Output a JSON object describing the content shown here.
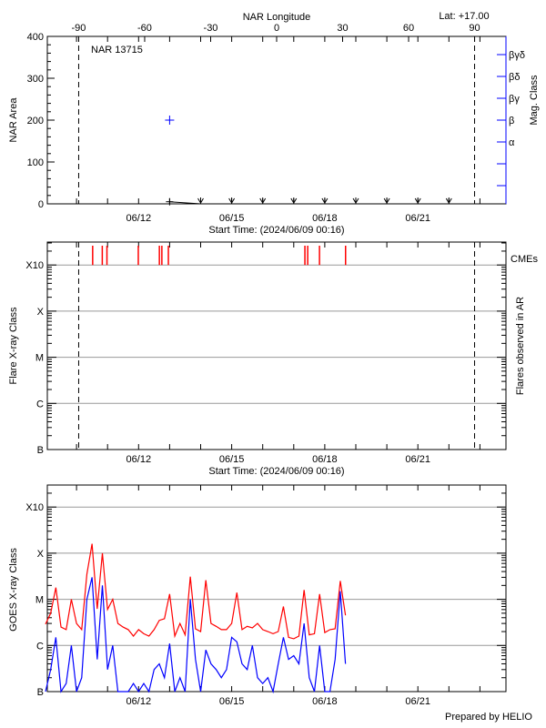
{
  "header": {
    "lat_label": "Lat: +17.00",
    "region_label": "NAR 13715"
  },
  "footer": {
    "credit": "Prepared by HELIO"
  },
  "colors": {
    "area": "#000000",
    "mag_class": "#0000ff",
    "cme": "#ff0000",
    "goes_long": "#ff0000",
    "goes_short": "#0000ff",
    "grid": "#999999"
  },
  "chart_data": [
    {
      "type": "scatter",
      "title": "NAR 13715",
      "top_axis_label": "NAR Longitude",
      "top_ticks": [
        -90,
        -60,
        -30,
        0,
        30,
        60,
        90
      ],
      "xlabel": "Start Time: (2024/06/09 00:16)",
      "x_tick_labels": [
        {
          "date": "2024-06-12 00:00",
          "label": "06/12"
        },
        {
          "date": "2024-06-15 00:00",
          "label": "06/15"
        },
        {
          "date": "2024-06-18 00:00",
          "label": "06/18"
        },
        {
          "date": "2024-06-21 00:00",
          "label": "06/21"
        }
      ],
      "xlim": [
        "2024-06-09 00:00",
        "2024-06-23 19:00"
      ],
      "ylabel": "NAR Area",
      "ylim": [
        0,
        400
      ],
      "yticks": [
        0,
        100,
        200,
        300,
        400
      ],
      "y2label": "Mag. Class",
      "y2_ticks": [
        "",
        "",
        "α",
        "β",
        "βγ",
        "βδ",
        "βγδ"
      ],
      "limb_markers_longitude": [
        -90,
        90
      ],
      "area_points": [
        {
          "date": "2024-06-13 00:00",
          "area": 5
        },
        {
          "date": "2024-06-14 00:00",
          "area": 0
        }
      ],
      "upper_limit_dates": [
        "2024-06-14 00:00",
        "2024-06-15 00:00",
        "2024-06-16 00:00",
        "2024-06-17 00:00",
        "2024-06-18 00:00",
        "2024-06-19 00:00",
        "2024-06-20 00:00",
        "2024-06-21 00:00",
        "2024-06-22 00:00"
      ],
      "mag_class_points": [
        {
          "date": "2024-06-13 00:00",
          "class": "β"
        }
      ]
    },
    {
      "type": "event",
      "xlabel": "Start Time: (2024/06/09 00:16)",
      "x_tick_labels": [
        "06/12",
        "06/15",
        "06/18",
        "06/21"
      ],
      "ylabel": "Flare X-ray Class",
      "y2label": "Flares observed in AR",
      "yticks": [
        "B",
        "C",
        "M",
        "X",
        "X10"
      ],
      "cme_label": "CMEs",
      "cme_times": [
        "2024-06-10 12:29",
        "2024-06-10 19:55",
        "2024-06-10 23:31",
        "2024-06-11 23:46",
        "2024-06-12 16:05",
        "2024-06-12 18:00",
        "2024-06-12 23:02",
        "2024-06-17 08:38",
        "2024-06-17 10:48",
        "2024-06-17 19:55",
        "2024-06-18 16:05"
      ],
      "flares": [],
      "grid": true
    },
    {
      "type": "line",
      "ylabel": "GOES X-ray Class",
      "x_tick_labels": [
        "06/12",
        "06/15",
        "06/18",
        "06/21"
      ],
      "yticks": [
        "B",
        "C",
        "M",
        "X",
        "X10"
      ],
      "grid": true,
      "times": [
        "2024-06-09 00:00",
        "2024-06-09 04:00",
        "2024-06-09 08:00",
        "2024-06-09 12:00",
        "2024-06-09 16:00",
        "2024-06-09 20:00",
        "2024-06-10 00:00",
        "2024-06-10 04:00",
        "2024-06-10 08:00",
        "2024-06-10 12:00",
        "2024-06-10 16:00",
        "2024-06-10 20:00",
        "2024-06-11 00:00",
        "2024-06-11 04:00",
        "2024-06-11 08:00",
        "2024-06-11 12:00",
        "2024-06-11 16:00",
        "2024-06-11 20:00",
        "2024-06-12 00:00",
        "2024-06-12 04:00",
        "2024-06-12 08:00",
        "2024-06-12 12:00",
        "2024-06-12 16:00",
        "2024-06-12 20:00",
        "2024-06-13 00:00",
        "2024-06-13 04:00",
        "2024-06-13 08:00",
        "2024-06-13 12:00",
        "2024-06-13 16:00",
        "2024-06-13 20:00",
        "2024-06-14 00:00",
        "2024-06-14 04:00",
        "2024-06-14 08:00",
        "2024-06-14 12:00",
        "2024-06-14 16:00",
        "2024-06-14 20:00",
        "2024-06-15 00:00",
        "2024-06-15 04:00",
        "2024-06-15 08:00",
        "2024-06-15 12:00",
        "2024-06-15 16:00",
        "2024-06-15 20:00",
        "2024-06-16 00:00",
        "2024-06-16 04:00",
        "2024-06-16 08:00",
        "2024-06-16 12:00",
        "2024-06-16 16:00",
        "2024-06-16 20:00",
        "2024-06-17 00:00",
        "2024-06-17 04:00",
        "2024-06-17 08:00",
        "2024-06-17 12:00",
        "2024-06-17 16:00",
        "2024-06-17 20:00",
        "2024-06-18 00:00",
        "2024-06-18 04:00",
        "2024-06-18 08:00",
        "2024-06-18 12:00",
        "2024-06-18 16:00"
      ],
      "series": [
        {
          "channel": "long",
          "values": [
            "C2.9",
            "C5",
            "M1.8",
            "C2.5",
            "C2.2",
            "M1.0",
            "C3",
            "C2.2",
            "M3.5",
            "X1.6",
            "C6.2",
            "X1.0",
            "C6",
            "M1.0",
            "C3",
            "C2.5",
            "C2.2",
            "C1.6",
            "C2.2",
            "C1.8",
            "C1.6",
            "C2.2",
            "C3.5",
            "C3.8",
            "M1.3",
            "C1.6",
            "C3",
            "C1.7",
            "M3.1",
            "C2.3",
            "C2",
            "M2.6",
            "C3",
            "C2.6",
            "C2.2",
            "C2.2",
            "C3",
            "M1.4",
            "C2.2",
            "C2.6",
            "C2.4",
            "C3",
            "C2.2",
            "C2",
            "C1.8",
            "C2",
            "C7",
            "C1.5",
            "C1.4",
            "C1.6",
            "M1.6",
            "C1.7",
            "C1.8",
            "M1.3",
            "C1.9",
            "C2.2",
            "C2.3",
            "M2.5",
            "C4.5"
          ]
        },
        {
          "channel": "short",
          "values": [
            "B1",
            "B3",
            "C1.5",
            "B1",
            "B1.5",
            "C1.0",
            "B1",
            "B2",
            "M1.0",
            "M3.0",
            "B5",
            "M2.0",
            "B3",
            "C1.0",
            "B1",
            "B1",
            "B1",
            "B1.5",
            "B1",
            "B1.5",
            "B1",
            "B3",
            "B4",
            "B2",
            "C1.1",
            "B1",
            "B2",
            "B1",
            "M1.0",
            "B5",
            "B1",
            "B8",
            "B4",
            "B3",
            "B2",
            "B3",
            "C1.5",
            "C1.2",
            "B4",
            "B3",
            "C1.0",
            "B2",
            "B1.5",
            "B2",
            "B1",
            "B4",
            "C1.5",
            "B5",
            "B6",
            "B4",
            "C3",
            "B2",
            "B1",
            "C1",
            "B1",
            "B1",
            "B5",
            "M1.5",
            "B4"
          ]
        }
      ]
    }
  ]
}
